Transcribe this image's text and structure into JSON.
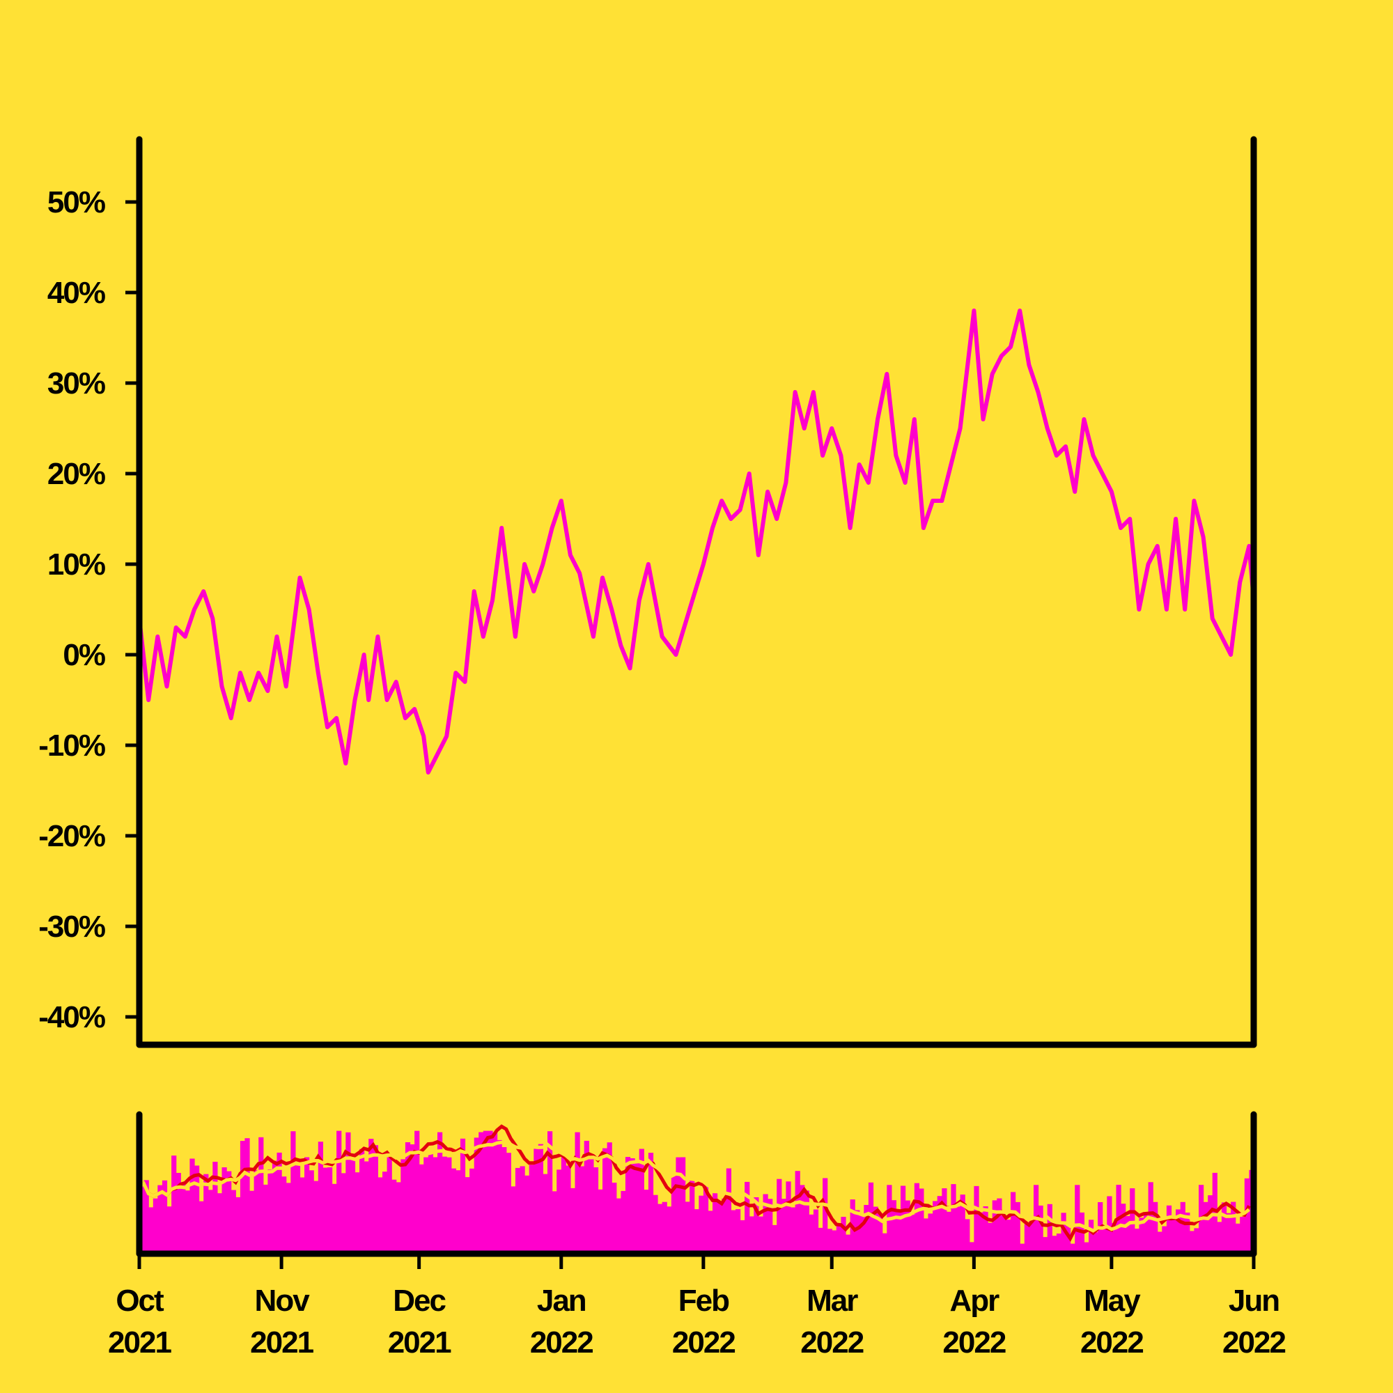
{
  "colors": {
    "background": "#FFE135",
    "price_line": "#FF00CC",
    "volume_bars": "#FF00CC",
    "ma_fast": "#E3000F",
    "ma_slow": "#FFE135",
    "axis": "#000000"
  },
  "chart_data": {
    "type": "line",
    "title": "",
    "xlabel": "",
    "ylabel": "",
    "ylim": [
      -0.45,
      0.56
    ],
    "y_ticks": [
      {
        "value": 0.5,
        "label": "50%"
      },
      {
        "value": 0.4,
        "label": "40%"
      },
      {
        "value": 0.3,
        "label": "30%"
      },
      {
        "value": 0.2,
        "label": "20%"
      },
      {
        "value": 0.1,
        "label": "10%"
      },
      {
        "value": 0.0,
        "label": "0%"
      },
      {
        "value": -0.1,
        "label": "-10%"
      },
      {
        "value": -0.2,
        "label": "-20%"
      },
      {
        "value": -0.3,
        "label": "-30%"
      },
      {
        "value": -0.4,
        "label": "-40%"
      }
    ],
    "x_ticks": [
      {
        "date": "2021-10-01",
        "label": [
          "Oct",
          "2021"
        ]
      },
      {
        "date": "2021-11-01",
        "label": [
          "Nov",
          "2021"
        ]
      },
      {
        "date": "2021-12-01",
        "label": [
          "Dec",
          "2021"
        ]
      },
      {
        "date": "2022-01-01",
        "label": [
          "Jan",
          "2022"
        ]
      },
      {
        "date": "2022-02-01",
        "label": [
          "Feb",
          "2022"
        ]
      },
      {
        "date": "2022-03-01",
        "label": [
          "Mar",
          "2022"
        ]
      },
      {
        "date": "2022-04-01",
        "label": [
          "Apr",
          "2022"
        ]
      },
      {
        "date": "2022-05-01",
        "label": [
          "May",
          "2022"
        ]
      },
      {
        "date": "2022-06-01",
        "label": [
          "Jun",
          "2022"
        ]
      }
    ],
    "xlim": [
      "2021-10-01",
      "2022-06-01"
    ],
    "grid": false,
    "series": [
      {
        "kind": "line",
        "points": [
          [
            "2021-10-01",
            0.04
          ],
          [
            "2021-10-03",
            -0.05
          ],
          [
            "2021-10-05",
            0.02
          ],
          [
            "2021-10-07",
            -0.035
          ],
          [
            "2021-10-09",
            0.03
          ],
          [
            "2021-10-11",
            0.02
          ],
          [
            "2021-10-13",
            0.05
          ],
          [
            "2021-10-15",
            0.07
          ],
          [
            "2021-10-17",
            0.04
          ],
          [
            "2021-10-19",
            -0.035
          ],
          [
            "2021-10-21",
            -0.07
          ],
          [
            "2021-10-23",
            -0.02
          ],
          [
            "2021-10-25",
            -0.05
          ],
          [
            "2021-10-27",
            -0.02
          ],
          [
            "2021-10-29",
            -0.04
          ],
          [
            "2021-10-31",
            0.02
          ],
          [
            "2021-11-02",
            -0.035
          ],
          [
            "2021-11-05",
            0.085
          ],
          [
            "2021-11-07",
            0.05
          ],
          [
            "2021-11-09",
            -0.02
          ],
          [
            "2021-11-11",
            -0.08
          ],
          [
            "2021-11-13",
            -0.07
          ],
          [
            "2021-11-15",
            -0.12
          ],
          [
            "2021-11-17",
            -0.05
          ],
          [
            "2021-11-19",
            0.0
          ],
          [
            "2021-11-20",
            -0.05
          ],
          [
            "2021-11-22",
            0.02
          ],
          [
            "2021-11-24",
            -0.05
          ],
          [
            "2021-11-26",
            -0.03
          ],
          [
            "2021-11-28",
            -0.07
          ],
          [
            "2021-11-30",
            -0.06
          ],
          [
            "2021-12-02",
            -0.09
          ],
          [
            "2021-12-03",
            -0.13
          ],
          [
            "2021-12-05",
            -0.11
          ],
          [
            "2021-12-07",
            -0.09
          ],
          [
            "2021-12-09",
            -0.02
          ],
          [
            "2021-12-11",
            -0.03
          ],
          [
            "2021-12-13",
            0.07
          ],
          [
            "2021-12-15",
            0.02
          ],
          [
            "2021-12-17",
            0.06
          ],
          [
            "2021-12-19",
            0.14
          ],
          [
            "2021-12-22",
            0.02
          ],
          [
            "2021-12-24",
            0.1
          ],
          [
            "2021-12-26",
            0.07
          ],
          [
            "2021-12-28",
            0.1
          ],
          [
            "2021-12-30",
            0.14
          ],
          [
            "2022-01-01",
            0.17
          ],
          [
            "2022-01-03",
            0.11
          ],
          [
            "2022-01-05",
            0.09
          ],
          [
            "2022-01-08",
            0.02
          ],
          [
            "2022-01-10",
            0.085
          ],
          [
            "2022-01-12",
            0.05
          ],
          [
            "2022-01-14",
            0.01
          ],
          [
            "2022-01-16",
            -0.015
          ],
          [
            "2022-01-18",
            0.06
          ],
          [
            "2022-01-20",
            0.1
          ],
          [
            "2022-01-23",
            0.02
          ],
          [
            "2022-01-26",
            0.0
          ],
          [
            "2022-01-29",
            0.05
          ],
          [
            "2022-02-01",
            0.1
          ],
          [
            "2022-02-03",
            0.14
          ],
          [
            "2022-02-05",
            0.17
          ],
          [
            "2022-02-07",
            0.15
          ],
          [
            "2022-02-09",
            0.16
          ],
          [
            "2022-02-11",
            0.2
          ],
          [
            "2022-02-13",
            0.11
          ],
          [
            "2022-02-15",
            0.18
          ],
          [
            "2022-02-17",
            0.15
          ],
          [
            "2022-02-19",
            0.19
          ],
          [
            "2022-02-21",
            0.29
          ],
          [
            "2022-02-23",
            0.25
          ],
          [
            "2022-02-25",
            0.29
          ],
          [
            "2022-02-27",
            0.22
          ],
          [
            "2022-03-01",
            0.25
          ],
          [
            "2022-03-03",
            0.22
          ],
          [
            "2022-03-05",
            0.14
          ],
          [
            "2022-03-07",
            0.21
          ],
          [
            "2022-03-09",
            0.19
          ],
          [
            "2022-03-11",
            0.26
          ],
          [
            "2022-03-13",
            0.31
          ],
          [
            "2022-03-15",
            0.22
          ],
          [
            "2022-03-17",
            0.19
          ],
          [
            "2022-03-19",
            0.26
          ],
          [
            "2022-03-21",
            0.14
          ],
          [
            "2022-03-23",
            0.17
          ],
          [
            "2022-03-25",
            0.17
          ],
          [
            "2022-03-27",
            0.21
          ],
          [
            "2022-03-29",
            0.25
          ],
          [
            "2022-04-01",
            0.38
          ],
          [
            "2022-04-03",
            0.26
          ],
          [
            "2022-04-05",
            0.31
          ],
          [
            "2022-04-07",
            0.33
          ],
          [
            "2022-04-09",
            0.34
          ],
          [
            "2022-04-11",
            0.38
          ],
          [
            "2022-04-13",
            0.32
          ],
          [
            "2022-04-15",
            0.29
          ],
          [
            "2022-04-17",
            0.25
          ],
          [
            "2022-04-19",
            0.22
          ],
          [
            "2022-04-21",
            0.23
          ],
          [
            "2022-04-23",
            0.18
          ],
          [
            "2022-04-25",
            0.26
          ],
          [
            "2022-04-27",
            0.22
          ],
          [
            "2022-04-29",
            0.2
          ],
          [
            "2022-05-01",
            0.18
          ],
          [
            "2022-05-03",
            0.14
          ],
          [
            "2022-05-05",
            0.15
          ],
          [
            "2022-05-07",
            0.05
          ],
          [
            "2022-05-09",
            0.1
          ],
          [
            "2022-05-11",
            0.12
          ],
          [
            "2022-05-13",
            0.05
          ],
          [
            "2022-05-15",
            0.15
          ],
          [
            "2022-05-17",
            0.05
          ],
          [
            "2022-05-19",
            0.17
          ],
          [
            "2022-05-21",
            0.13
          ],
          [
            "2022-05-23",
            0.04
          ],
          [
            "2022-05-25",
            0.02
          ],
          [
            "2022-05-27",
            0.0
          ],
          [
            "2022-05-29",
            0.08
          ],
          [
            "2022-05-31",
            0.12
          ],
          [
            "2022-06-01",
            0.06
          ]
        ]
      }
    ],
    "volume_panel": {
      "kind": "bar",
      "moving_averages": [
        "fast",
        "slow"
      ]
    }
  }
}
